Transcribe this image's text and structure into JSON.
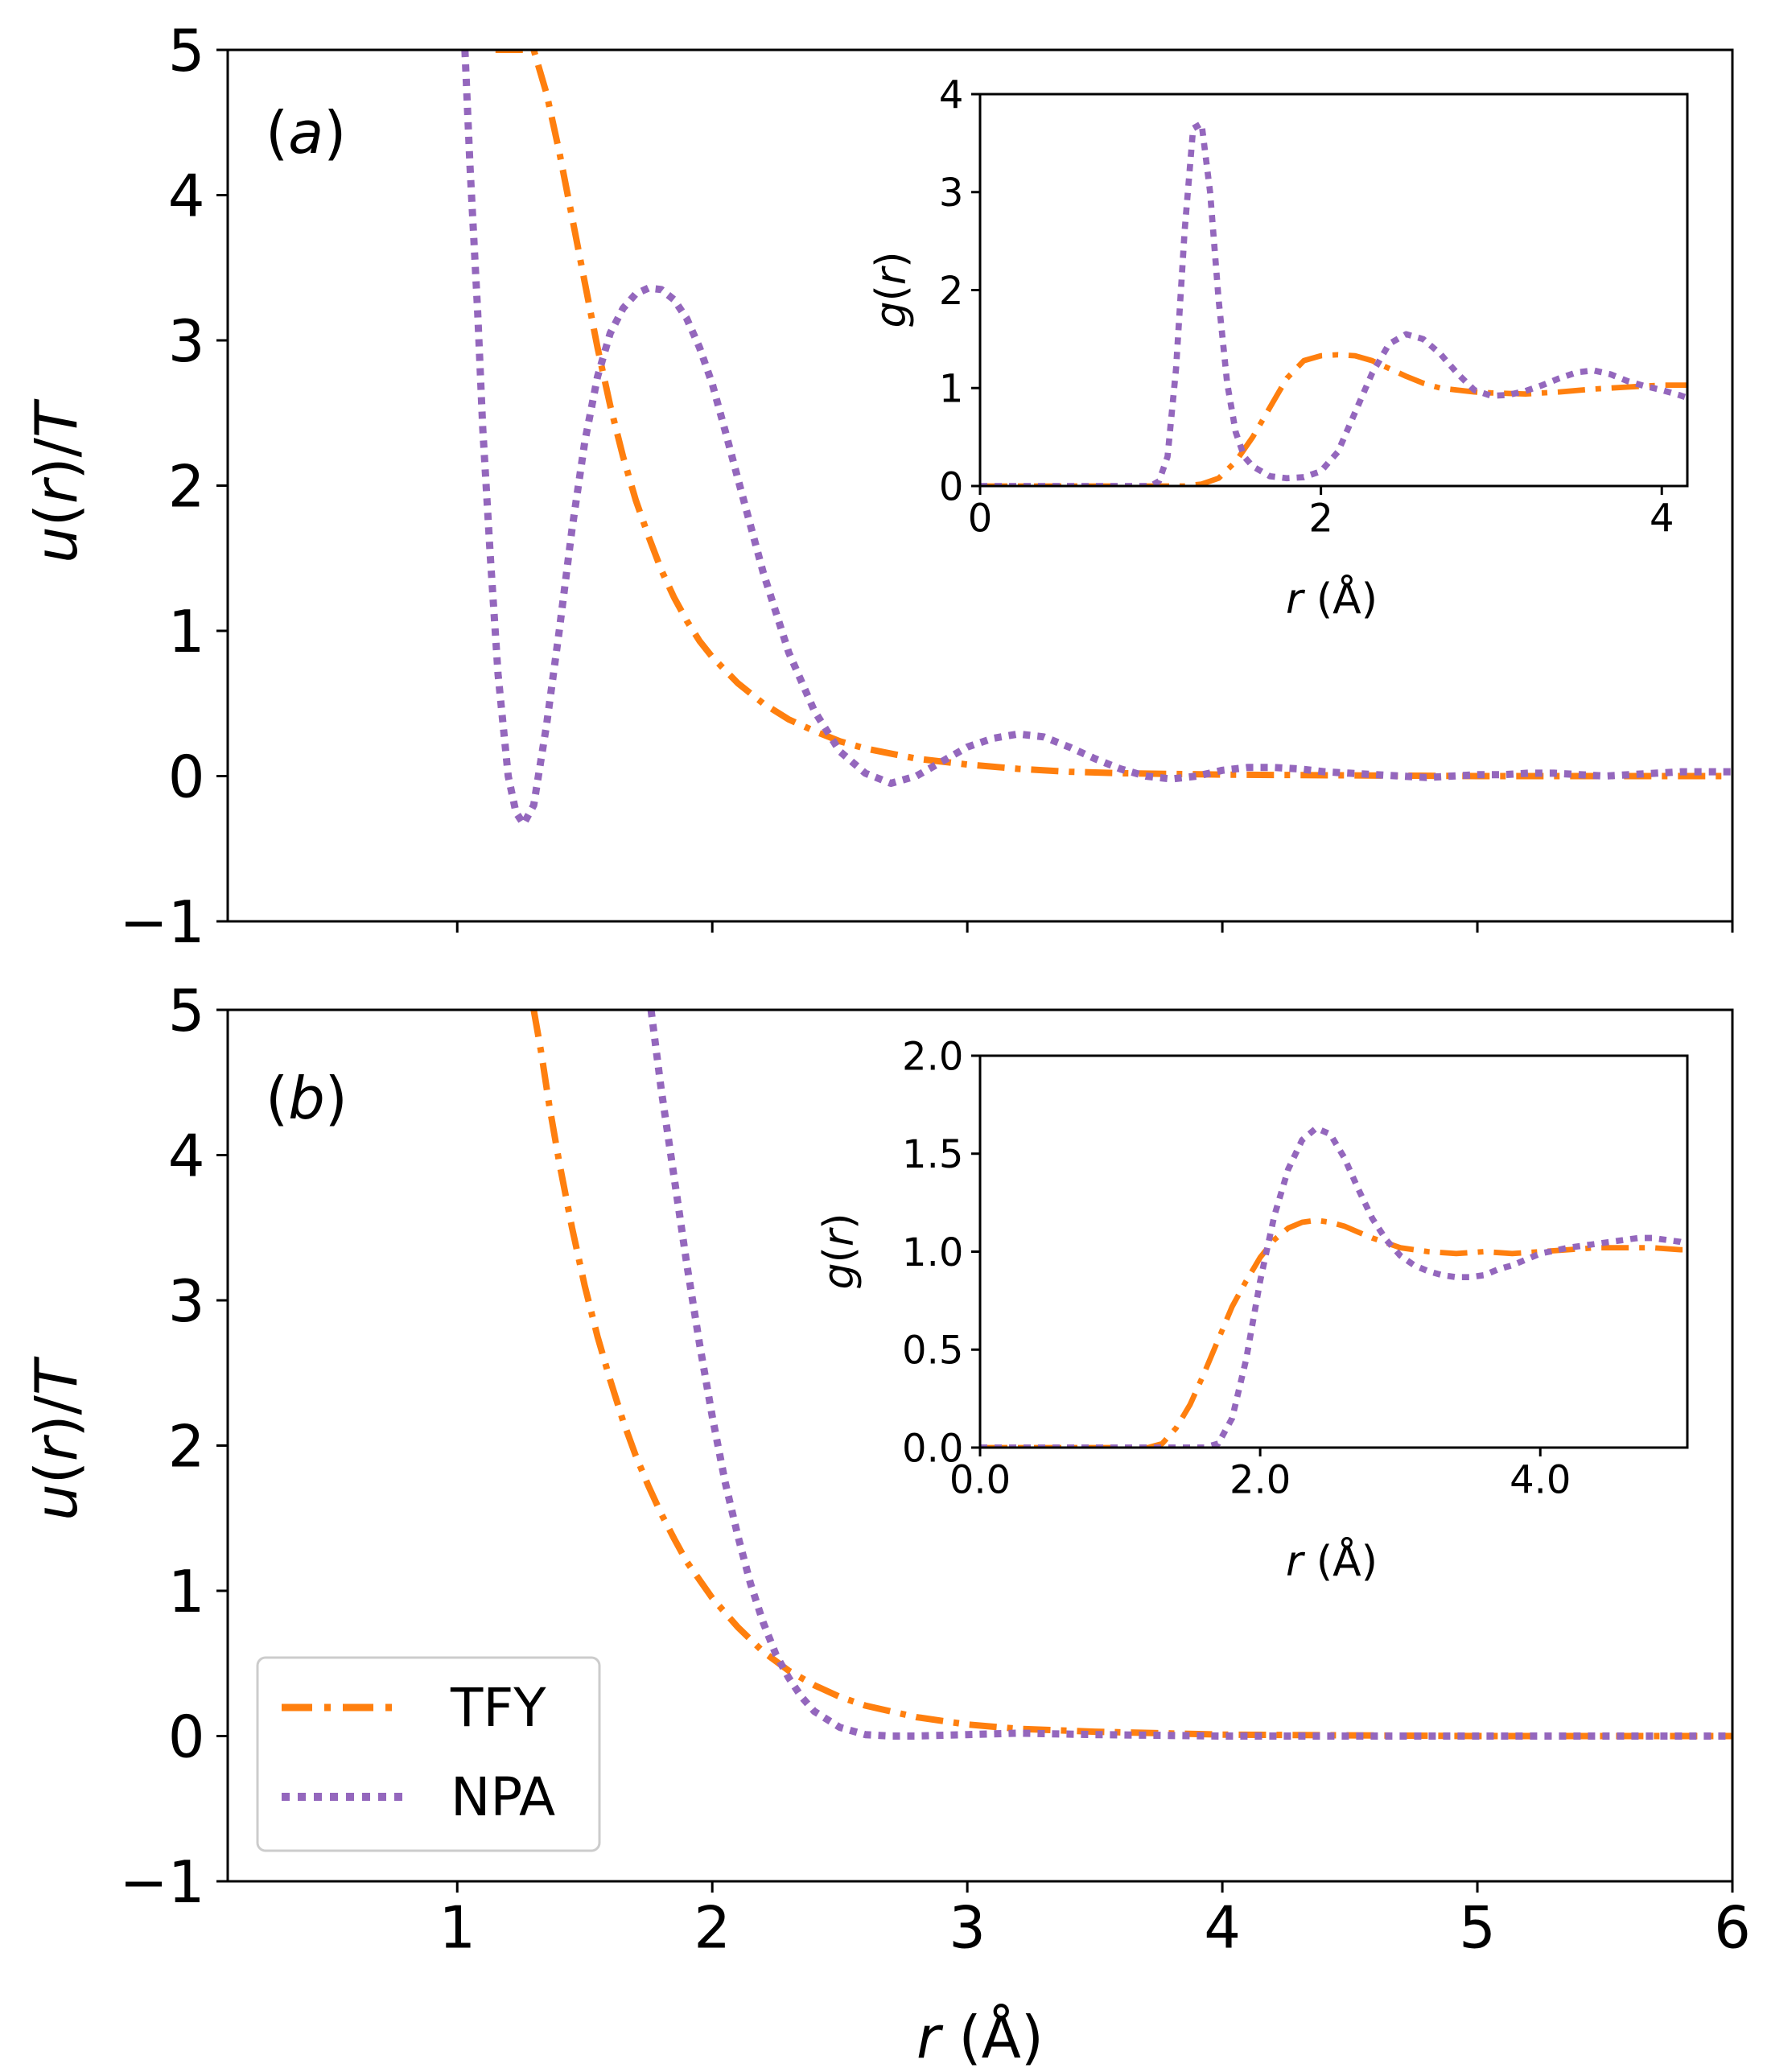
{
  "colors": {
    "TFY": "#ff7f0e",
    "NPA": "#9467bd"
  },
  "legend": [
    {
      "label": "TFY",
      "style": "dashdot"
    },
    {
      "label": "NPA",
      "style": "dotted"
    }
  ],
  "chart_data": [
    {
      "panel": "(a)",
      "panel_letter": "a",
      "type": "line",
      "xlabel": "r (Å)",
      "ylabel": "u(r)/T",
      "xlim": [
        0.1,
        6.0
      ],
      "ylim": [
        -1,
        5
      ],
      "xticks": [
        1,
        2,
        3,
        4,
        5,
        6
      ],
      "yticks": [
        -1,
        0,
        1,
        2,
        3,
        4,
        5
      ],
      "show_x_ticklabels": false,
      "series": [
        {
          "name": "TFY",
          "x": [
            1.15,
            1.2,
            1.25,
            1.3,
            1.35,
            1.4,
            1.45,
            1.5,
            1.55,
            1.6,
            1.65,
            1.7,
            1.75,
            1.8,
            1.85,
            1.9,
            1.95,
            2.0,
            2.1,
            2.2,
            2.3,
            2.4,
            2.5,
            2.6,
            2.8,
            3.0,
            3.2,
            3.4,
            3.6,
            3.8,
            4.0,
            4.5,
            5.0,
            5.5,
            6.0
          ],
          "y": [
            5.0,
            5.0,
            5.0,
            5.0,
            4.7,
            4.3,
            3.85,
            3.4,
            2.95,
            2.55,
            2.2,
            1.9,
            1.65,
            1.42,
            1.23,
            1.07,
            0.93,
            0.82,
            0.64,
            0.5,
            0.39,
            0.31,
            0.24,
            0.19,
            0.12,
            0.08,
            0.05,
            0.03,
            0.02,
            0.015,
            0.01,
            0.005,
            0.0,
            0.0,
            0.0
          ]
        },
        {
          "name": "NPA",
          "x": [
            1.03,
            1.05,
            1.08,
            1.1,
            1.13,
            1.16,
            1.2,
            1.23,
            1.26,
            1.3,
            1.35,
            1.4,
            1.45,
            1.5,
            1.55,
            1.6,
            1.65,
            1.7,
            1.75,
            1.8,
            1.85,
            1.9,
            1.95,
            2.0,
            2.05,
            2.1,
            2.2,
            2.3,
            2.4,
            2.5,
            2.6,
            2.7,
            2.8,
            2.9,
            3.0,
            3.1,
            3.2,
            3.3,
            3.4,
            3.5,
            3.6,
            3.7,
            3.8,
            3.9,
            4.0,
            4.1,
            4.2,
            4.3,
            4.4,
            4.5,
            4.6,
            4.7,
            4.8,
            4.9,
            5.0,
            5.1,
            5.2,
            5.3,
            5.4,
            5.5,
            5.6,
            5.7,
            5.8,
            5.9,
            6.0
          ],
          "y": [
            5.0,
            4.2,
            3.2,
            2.4,
            1.5,
            0.7,
            0.0,
            -0.25,
            -0.33,
            -0.2,
            0.35,
            1.0,
            1.7,
            2.3,
            2.75,
            3.05,
            3.22,
            3.32,
            3.36,
            3.35,
            3.28,
            3.15,
            2.95,
            2.7,
            2.38,
            2.05,
            1.4,
            0.85,
            0.45,
            0.17,
            0.02,
            -0.05,
            0.0,
            0.1,
            0.2,
            0.26,
            0.29,
            0.27,
            0.2,
            0.12,
            0.05,
            0.0,
            -0.02,
            0.0,
            0.04,
            0.06,
            0.06,
            0.05,
            0.03,
            0.02,
            0.01,
            0.0,
            -0.01,
            0.0,
            0.01,
            0.01,
            0.02,
            0.02,
            0.01,
            0.0,
            0.01,
            0.02,
            0.03,
            0.03,
            0.03
          ]
        }
      ],
      "inset": {
        "type": "line",
        "xlabel": "r (Å)",
        "ylabel": "g(r)",
        "xlim": [
          0,
          4.15
        ],
        "ylim": [
          0,
          4
        ],
        "xticks": [
          0,
          2,
          4
        ],
        "yticks": [
          0,
          1,
          2,
          3,
          4
        ],
        "tick_decimals": 0,
        "series": [
          {
            "name": "TFY",
            "x": [
              0,
              1.0,
              1.2,
              1.3,
              1.4,
              1.5,
              1.6,
              1.7,
              1.8,
              1.9,
              2.0,
              2.1,
              2.2,
              2.3,
              2.4,
              2.5,
              2.6,
              2.7,
              2.8,
              2.9,
              3.0,
              3.2,
              3.4,
              3.6,
              3.8,
              4.0,
              4.15
            ],
            "y": [
              0,
              0,
              0.0,
              0.02,
              0.08,
              0.25,
              0.5,
              0.8,
              1.1,
              1.28,
              1.33,
              1.34,
              1.33,
              1.28,
              1.2,
              1.12,
              1.05,
              1.0,
              0.98,
              0.96,
              0.95,
              0.94,
              0.96,
              0.99,
              1.01,
              1.03,
              1.03
            ]
          },
          {
            "name": "NPA",
            "x": [
              0,
              1.0,
              1.05,
              1.1,
              1.15,
              1.2,
              1.25,
              1.3,
              1.35,
              1.4,
              1.45,
              1.5,
              1.55,
              1.6,
              1.7,
              1.8,
              1.9,
              2.0,
              2.1,
              2.2,
              2.3,
              2.4,
              2.5,
              2.6,
              2.7,
              2.8,
              2.9,
              3.0,
              3.1,
              3.2,
              3.3,
              3.4,
              3.5,
              3.6,
              3.7,
              3.8,
              3.9,
              4.0,
              4.1,
              4.15
            ],
            "y": [
              0,
              0,
              0.05,
              0.3,
              1.2,
              2.6,
              3.65,
              3.7,
              3.0,
              1.9,
              1.05,
              0.55,
              0.3,
              0.2,
              0.1,
              0.08,
              0.09,
              0.15,
              0.35,
              0.75,
              1.15,
              1.45,
              1.55,
              1.5,
              1.35,
              1.15,
              0.98,
              0.92,
              0.93,
              0.97,
              1.03,
              1.1,
              1.16,
              1.18,
              1.14,
              1.07,
              1.02,
              0.98,
              0.93,
              0.9
            ]
          }
        ]
      }
    },
    {
      "panel": "(b)",
      "panel_letter": "b",
      "type": "line",
      "xlabel": "r (Å)",
      "ylabel": "u(r)/T",
      "xlim": [
        0.1,
        6.0
      ],
      "ylim": [
        -1,
        5
      ],
      "xticks": [
        1,
        2,
        3,
        4,
        5,
        6
      ],
      "yticks": [
        -1,
        0,
        1,
        2,
        3,
        4,
        5
      ],
      "show_x_ticklabels": true,
      "series": [
        {
          "name": "TFY",
          "x": [
            1.3,
            1.33,
            1.36,
            1.4,
            1.45,
            1.5,
            1.55,
            1.6,
            1.65,
            1.7,
            1.75,
            1.8,
            1.85,
            1.9,
            2.0,
            2.1,
            2.2,
            2.3,
            2.4,
            2.5,
            2.6,
            2.8,
            3.0,
            3.2,
            3.5,
            4.0,
            5.0,
            6.0
          ],
          "y": [
            5.0,
            4.7,
            4.35,
            3.95,
            3.5,
            3.1,
            2.75,
            2.45,
            2.17,
            1.93,
            1.72,
            1.53,
            1.36,
            1.2,
            0.95,
            0.75,
            0.58,
            0.45,
            0.35,
            0.27,
            0.21,
            0.13,
            0.08,
            0.05,
            0.03,
            0.01,
            0.0,
            0.0
          ]
        },
        {
          "name": "NPA",
          "x": [
            1.76,
            1.8,
            1.85,
            1.9,
            1.95,
            2.0,
            2.05,
            2.1,
            2.15,
            2.2,
            2.25,
            2.3,
            2.35,
            2.4,
            2.5,
            2.6,
            2.7,
            2.8,
            3.0,
            3.2,
            3.5,
            4.0,
            4.5,
            5.0,
            6.0
          ],
          "y": [
            5.0,
            4.45,
            3.85,
            3.25,
            2.7,
            2.2,
            1.75,
            1.38,
            1.05,
            0.78,
            0.56,
            0.4,
            0.27,
            0.17,
            0.06,
            0.01,
            0.0,
            0.0,
            0.01,
            0.02,
            0.01,
            0.0,
            0.0,
            0.0,
            0.0
          ]
        }
      ],
      "inset": {
        "type": "line",
        "xlabel": "r (Å)",
        "ylabel": "g(r)",
        "xlim": [
          0,
          5.05
        ],
        "ylim": [
          0,
          2
        ],
        "xticks": [
          0,
          2,
          4
        ],
        "yticks": [
          0.0,
          0.5,
          1.0,
          1.5,
          2.0
        ],
        "tick_decimals": 1,
        "series": [
          {
            "name": "TFY",
            "x": [
              0,
              1.2,
              1.3,
              1.4,
              1.5,
              1.6,
              1.7,
              1.8,
              1.9,
              2.0,
              2.1,
              2.2,
              2.3,
              2.4,
              2.5,
              2.6,
              2.7,
              2.8,
              3.0,
              3.2,
              3.4,
              3.6,
              3.8,
              4.0,
              4.2,
              4.4,
              4.6,
              4.8,
              5.0,
              5.05
            ],
            "y": [
              0,
              0,
              0.02,
              0.1,
              0.22,
              0.38,
              0.55,
              0.72,
              0.85,
              0.97,
              1.06,
              1.12,
              1.15,
              1.16,
              1.15,
              1.13,
              1.1,
              1.07,
              1.02,
              1.0,
              0.99,
              1.0,
              0.99,
              1.0,
              1.01,
              1.02,
              1.02,
              1.02,
              1.01,
              1.01
            ]
          },
          {
            "name": "NPA",
            "x": [
              0,
              1.6,
              1.7,
              1.8,
              1.9,
              2.0,
              2.1,
              2.2,
              2.3,
              2.4,
              2.5,
              2.6,
              2.7,
              2.8,
              2.9,
              3.0,
              3.1,
              3.2,
              3.3,
              3.4,
              3.5,
              3.6,
              3.7,
              3.8,
              3.9,
              4.0,
              4.2,
              4.4,
              4.6,
              4.7,
              4.8,
              5.0,
              5.05
            ],
            "y": [
              0,
              0,
              0.02,
              0.15,
              0.45,
              0.85,
              1.18,
              1.42,
              1.57,
              1.63,
              1.6,
              1.48,
              1.32,
              1.17,
              1.06,
              0.98,
              0.93,
              0.9,
              0.88,
              0.87,
              0.87,
              0.88,
              0.91,
              0.93,
              0.96,
              0.99,
              1.02,
              1.04,
              1.06,
              1.07,
              1.07,
              1.05,
              1.04
            ]
          }
        ]
      }
    }
  ]
}
